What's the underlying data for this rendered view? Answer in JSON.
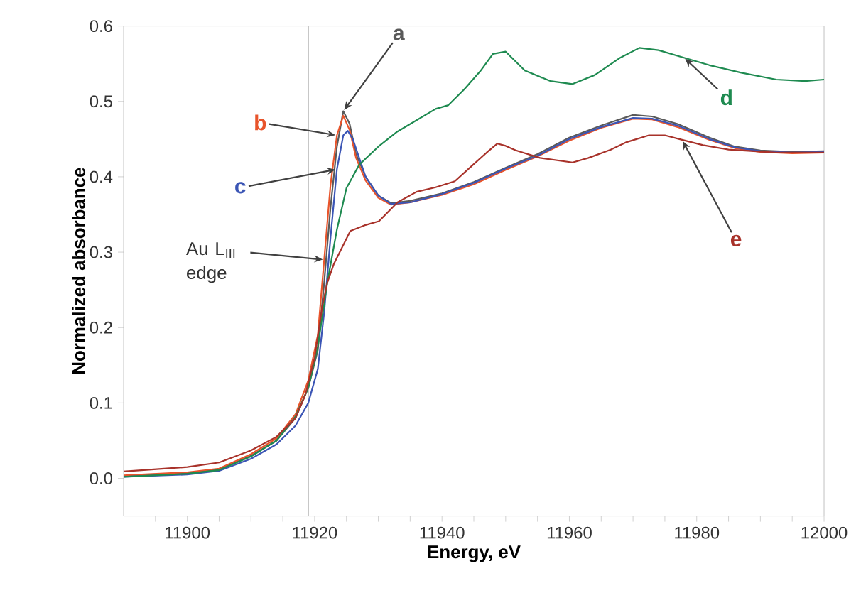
{
  "chart_data": {
    "type": "line",
    "xlabel": "Energy, eV",
    "ylabel": "Normalized absorbance",
    "xlim": [
      11890,
      12000
    ],
    "ylim": [
      -0.05,
      0.6
    ],
    "xticks": [
      {
        "value": 11895,
        "label": null
      },
      11900,
      {
        "value": 11905,
        "label": null
      },
      {
        "value": 11910,
        "label": null
      },
      {
        "value": 11915,
        "label": null
      },
      11920,
      {
        "value": 11925,
        "label": null
      },
      {
        "value": 11930,
        "label": null
      },
      {
        "value": 11935,
        "label": null
      },
      11940,
      {
        "value": 11945,
        "label": null
      },
      {
        "value": 11950,
        "label": null
      },
      {
        "value": 11955,
        "label": null
      },
      11960,
      {
        "value": 11965,
        "label": null
      },
      {
        "value": 11970,
        "label": null
      },
      {
        "value": 11975,
        "label": null
      },
      11980,
      {
        "value": 11985,
        "label": null
      },
      {
        "value": 11990,
        "label": null
      },
      {
        "value": 11995,
        "label": null
      },
      12000
    ],
    "yticks": [
      {
        "value": 0,
        "label": "0.0"
      },
      {
        "value": 0.1,
        "label": "0.1"
      },
      {
        "value": 0.2,
        "label": "0.2"
      },
      {
        "value": 0.3,
        "label": "0.3"
      },
      {
        "value": 0.4,
        "label": "0.4"
      },
      {
        "value": 0.5,
        "label": "0.5"
      },
      {
        "value": 0.6,
        "label": "0.6"
      }
    ],
    "series": [
      {
        "name": "a",
        "color": "#5a5a5a",
        "x": [
          11890,
          11900,
          11905,
          11910,
          11914,
          11917,
          11919,
          11920.5,
          11921.5,
          11922.5,
          11923.5,
          11924.5,
          11925.5,
          11926.5,
          11928,
          11930,
          11932,
          11935,
          11940,
          11945,
          11950,
          11955,
          11960,
          11965,
          11970,
          11973,
          11977,
          11982,
          11986,
          11990,
          11995,
          12000
        ],
        "values": [
          0.003,
          0.007,
          0.012,
          0.03,
          0.05,
          0.08,
          0.12,
          0.17,
          0.26,
          0.36,
          0.44,
          0.487,
          0.47,
          0.43,
          0.4,
          0.375,
          0.365,
          0.368,
          0.378,
          0.393,
          0.412,
          0.43,
          0.452,
          0.468,
          0.482,
          0.48,
          0.47,
          0.452,
          0.44,
          0.435,
          0.433,
          0.434
        ]
      },
      {
        "name": "b",
        "color": "#e8542b",
        "x": [
          11890,
          11900,
          11905,
          11910,
          11914,
          11917,
          11919,
          11920.5,
          11921.5,
          11922.5,
          11923.5,
          11924.5,
          11925.5,
          11926.5,
          11928,
          11930,
          11932,
          11935,
          11940,
          11945,
          11950,
          11955,
          11960,
          11965,
          11970,
          11973,
          11977,
          11982,
          11986,
          11990,
          11995,
          12000
        ],
        "values": [
          0.004,
          0.008,
          0.013,
          0.032,
          0.053,
          0.085,
          0.13,
          0.19,
          0.29,
          0.39,
          0.455,
          0.481,
          0.462,
          0.425,
          0.395,
          0.372,
          0.363,
          0.366,
          0.376,
          0.39,
          0.409,
          0.427,
          0.448,
          0.465,
          0.477,
          0.476,
          0.466,
          0.449,
          0.438,
          0.433,
          0.431,
          0.432
        ]
      },
      {
        "name": "c",
        "color": "#3b55b5",
        "x": [
          11890,
          11900,
          11905,
          11910,
          11914,
          11917,
          11919,
          11920.5,
          11921.5,
          11922.5,
          11923.5,
          11924.5,
          11925.2,
          11926,
          11927,
          11928,
          11930,
          11932,
          11935,
          11940,
          11945,
          11950,
          11955,
          11960,
          11965,
          11970,
          11973,
          11977,
          11982,
          11986,
          11990,
          11995,
          12000
        ],
        "values": [
          0.002,
          0.005,
          0.01,
          0.026,
          0.045,
          0.07,
          0.1,
          0.145,
          0.22,
          0.32,
          0.41,
          0.455,
          0.461,
          0.45,
          0.425,
          0.4,
          0.375,
          0.364,
          0.366,
          0.377,
          0.392,
          0.411,
          0.428,
          0.45,
          0.466,
          0.478,
          0.477,
          0.468,
          0.45,
          0.439,
          0.434,
          0.432,
          0.433
        ]
      },
      {
        "name": "d",
        "color": "#1e8a50",
        "x": [
          11890,
          11900,
          11905,
          11910,
          11914,
          11917,
          11919,
          11920.5,
          11922,
          11923.5,
          11925,
          11927,
          11930,
          11933,
          11936,
          11939,
          11941,
          11943.5,
          11946,
          11948,
          11950,
          11953,
          11957,
          11960.5,
          11964,
          11968,
          11971,
          11974,
          11978,
          11982,
          11987,
          11992.5,
          11997,
          12000
        ],
        "values": [
          0.002,
          0.006,
          0.011,
          0.029,
          0.05,
          0.082,
          0.12,
          0.175,
          0.26,
          0.33,
          0.385,
          0.416,
          0.44,
          0.46,
          0.475,
          0.49,
          0.495,
          0.516,
          0.54,
          0.563,
          0.566,
          0.541,
          0.527,
          0.523,
          0.535,
          0.558,
          0.571,
          0.568,
          0.558,
          0.548,
          0.538,
          0.529,
          0.527,
          0.529
        ]
      },
      {
        "name": "e",
        "color": "#a8322a",
        "x": [
          11890,
          11900,
          11905,
          11910,
          11914,
          11917,
          11918.5,
          11920,
          11921.2,
          11922,
          11923,
          11925.6,
          11928,
          11930.1,
          11933,
          11936,
          11939,
          11942,
          11944.9,
          11947,
          11948.7,
          11950,
          11951.6,
          11955.4,
          11960.5,
          11963,
          11966.5,
          11969,
          11972.5,
          11975,
          11977.7,
          11981,
          11985,
          11992.5,
          12000
        ],
        "values": [
          0.009,
          0.015,
          0.021,
          0.037,
          0.055,
          0.08,
          0.11,
          0.16,
          0.228,
          0.26,
          0.284,
          0.328,
          0.336,
          0.341,
          0.366,
          0.38,
          0.386,
          0.394,
          0.416,
          0.432,
          0.444,
          0.441,
          0.435,
          0.425,
          0.419,
          0.425,
          0.436,
          0.446,
          0.455,
          0.455,
          0.449,
          0.442,
          0.436,
          0.432,
          0.432
        ]
      }
    ],
    "ref_lines": [
      {
        "axis": "x",
        "value": 11919,
        "color": "#b4b4b4"
      }
    ],
    "annotations": [
      {
        "text": "Au L$_{III}$ edge",
        "x": 11921.5,
        "y": 0.29
      }
    ]
  }
}
